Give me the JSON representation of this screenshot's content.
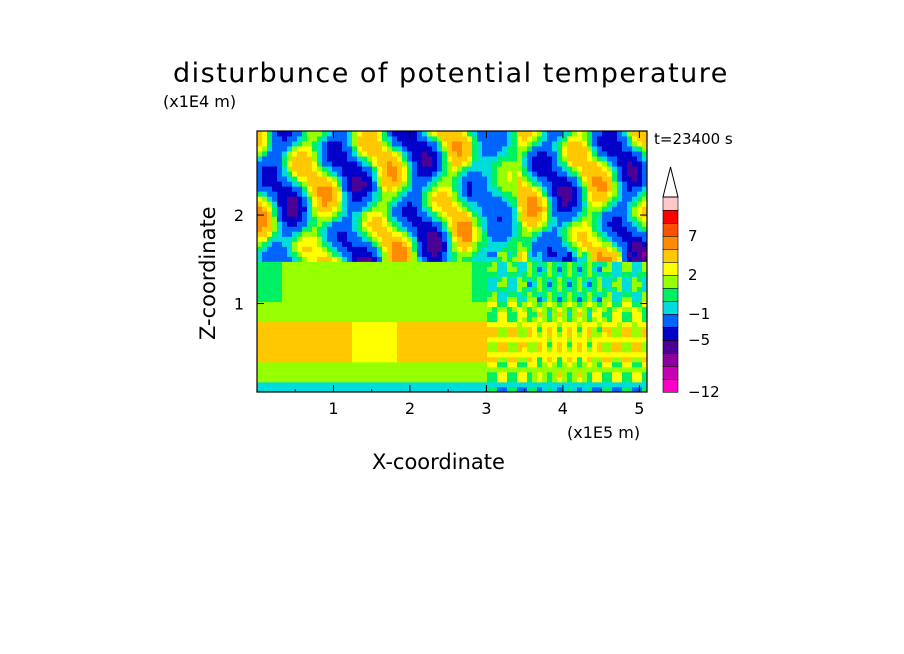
{
  "chart_data": {
    "type": "heatmap",
    "title": "disturbunce of potential temperature",
    "time_label": "t=23400 s",
    "xlabel": "X-coordinate",
    "ylabel": "Z-coordinate",
    "x_unit": "(x1E5 m)",
    "y_unit": "(x1E4 m)",
    "xlim": [
      0,
      5.1
    ],
    "ylim": [
      0,
      2.95
    ],
    "x_ticks": [
      1,
      2,
      3,
      4,
      5
    ],
    "y_ticks": [
      1,
      2
    ],
    "colorbar": {
      "levels": [
        -12,
        -11,
        -9,
        -7,
        -5,
        -3,
        -1,
        0,
        1,
        2,
        3,
        5,
        7,
        9,
        11
      ],
      "tick_labels": [
        "-12",
        "-5",
        "-1",
        "2",
        "7"
      ],
      "tick_values": [
        -12,
        -5,
        -1,
        2,
        7
      ],
      "extend": "max",
      "colors": [
        "#ff00c8",
        "#c800b4",
        "#8c00a0",
        "#4b0096",
        "#0000c8",
        "#0064ff",
        "#00dcdc",
        "#00f064",
        "#96ff00",
        "#ffff00",
        "#ffc800",
        "#ff8c00",
        "#ff5000",
        "#ff0000",
        "#ffc8c8"
      ]
    },
    "field_description_layers": [
      {
        "z_range": [
          0.0,
          0.12
        ],
        "x_range": [
          0.0,
          3.0
        ],
        "value": -1
      },
      {
        "z_range": [
          0.12,
          0.35
        ],
        "x_range": [
          0.0,
          5.1
        ],
        "value": 2
      },
      {
        "z_range": [
          0.35,
          0.75
        ],
        "x_range": [
          0.0,
          3.0
        ],
        "value": 4
      },
      {
        "z_range": [
          0.75,
          1.0
        ],
        "x_range": [
          0.0,
          5.1
        ],
        "value": 2
      },
      {
        "z_range": [
          1.0,
          1.6
        ],
        "x_range": [
          0.0,
          3.0
        ],
        "value": 1
      },
      {
        "z_range": [
          1.6,
          2.95
        ],
        "x_range": [
          0.0,
          5.1
        ],
        "value": -3
      }
    ]
  }
}
